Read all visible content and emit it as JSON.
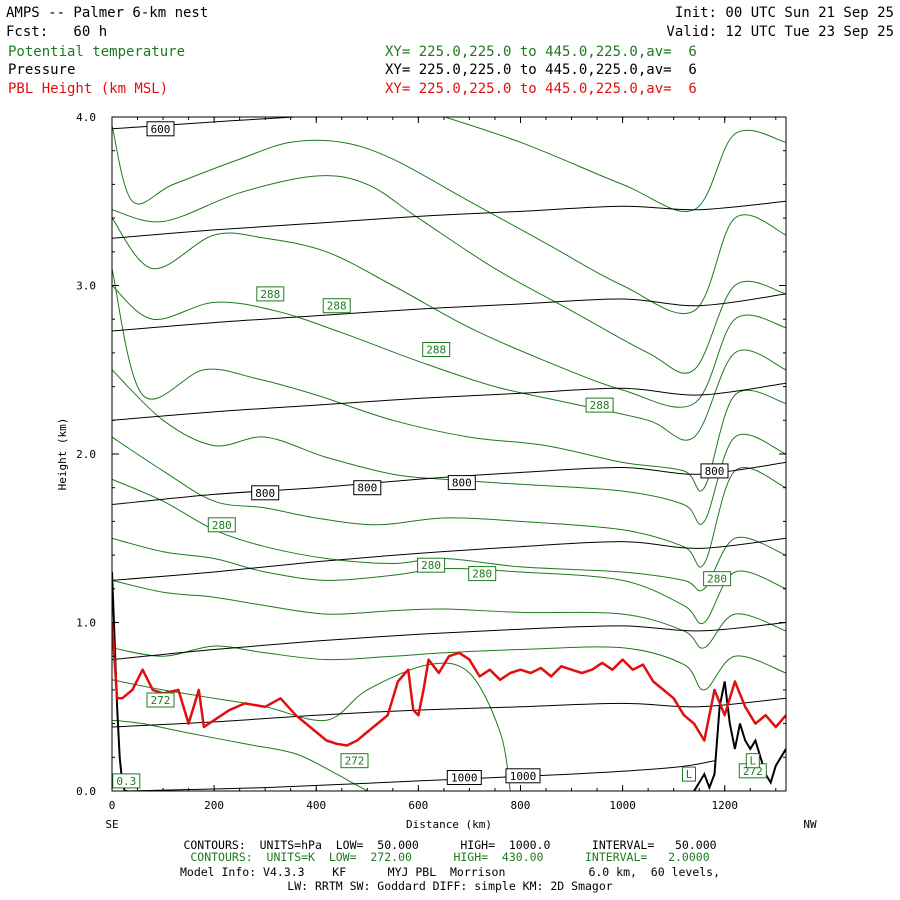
{
  "header": {
    "title": "AMPS -- Palmer 6-km nest",
    "init": "Init: 00 UTC Sun 21 Sep 25",
    "fcst": "Fcst:   60 h",
    "valid": "Valid: 12 UTC Tue 23 Sep 25",
    "fields": [
      {
        "name": "Potential temperature",
        "xy": "XY= 225.0,225.0 to 445.0,225.0,av=  6",
        "color": "#1e7a1e"
      },
      {
        "name": "Pressure",
        "xy": "XY= 225.0,225.0 to 445.0,225.0,av=  6",
        "color": "#000000"
      },
      {
        "name": "PBL Height (km MSL)",
        "xy": "XY= 225.0,225.0 to 445.0,225.0,av=  6",
        "color": "#e01010"
      }
    ]
  },
  "footer": {
    "pressure_contours": "CONTOURS:  UNITS=hPa  LOW=  50.000      HIGH=  1000.0      INTERVAL=   50.000",
    "theta_contours": "CONTOURS:  UNITS=K  LOW=  272.00      HIGH=  430.00      INTERVAL=   2.0000",
    "model_info": "Model Info: V4.3.3    KF      MYJ PBL  Morrison            6.0 km,  60 levels,",
    "physics": "LW: RRTM SW: Goddard DIFF: simple KM: 2D Smagor"
  },
  "chart_data": {
    "type": "line",
    "xlabel": "Distance (km)",
    "ylabel": "Height (km)",
    "xlim": [
      0,
      1320
    ],
    "ylim": [
      0,
      4.0
    ],
    "x_ticks": [
      0,
      200,
      400,
      600,
      800,
      1000,
      1200
    ],
    "x_tick_labels": [
      "0",
      "200",
      "400",
      "600",
      "800",
      "1000",
      "1200"
    ],
    "y_ticks": [
      0,
      1,
      2,
      3,
      4
    ],
    "y_tick_labels": [
      "0.0",
      "1.0",
      "2.0",
      "3.0",
      "4.0"
    ],
    "left_end_label": "SE",
    "right_end_label": "NW",
    "theta_color": "#1e7a1e",
    "pressure_color": "#000000",
    "pbl_color": "#e01010",
    "pressure_contours": [
      {
        "level": 1000,
        "x": [
          20,
          300,
          600,
          900,
          1100,
          1180
        ],
        "y": [
          0.0,
          0.02,
          0.06,
          0.1,
          0.14,
          0.18
        ]
      },
      {
        "level": 950,
        "x": [
          0,
          200,
          400,
          600,
          800,
          1000,
          1150,
          1320
        ],
        "y": [
          0.38,
          0.41,
          0.45,
          0.48,
          0.5,
          0.52,
          0.5,
          0.55
        ]
      },
      {
        "level": 900,
        "x": [
          0,
          200,
          400,
          600,
          800,
          1000,
          1150,
          1320
        ],
        "y": [
          0.78,
          0.84,
          0.89,
          0.93,
          0.96,
          0.98,
          0.95,
          1.0
        ]
      },
      {
        "level": 850,
        "x": [
          0,
          200,
          400,
          600,
          800,
          1000,
          1150,
          1320
        ],
        "y": [
          1.25,
          1.3,
          1.36,
          1.41,
          1.45,
          1.48,
          1.44,
          1.5
        ]
      },
      {
        "level": 800,
        "x": [
          0,
          200,
          400,
          600,
          800,
          1000,
          1150,
          1320
        ],
        "y": [
          1.7,
          1.76,
          1.8,
          1.85,
          1.89,
          1.92,
          1.88,
          1.95
        ]
      },
      {
        "level": 750,
        "x": [
          0,
          200,
          400,
          600,
          800,
          1000,
          1150,
          1320
        ],
        "y": [
          2.2,
          2.25,
          2.29,
          2.33,
          2.36,
          2.39,
          2.35,
          2.42
        ]
      },
      {
        "level": 700,
        "x": [
          0,
          200,
          400,
          600,
          800,
          1000,
          1150,
          1320
        ],
        "y": [
          2.73,
          2.78,
          2.82,
          2.86,
          2.89,
          2.92,
          2.88,
          2.95
        ]
      },
      {
        "level": 650,
        "x": [
          0,
          200,
          400,
          600,
          800,
          1000,
          1150,
          1320
        ],
        "y": [
          3.28,
          3.33,
          3.37,
          3.41,
          3.44,
          3.47,
          3.45,
          3.5
        ]
      },
      {
        "level": 600,
        "x": [
          0,
          100,
          300,
          500,
          800,
          1100,
          1320
        ],
        "y": [
          3.93,
          3.95,
          3.99,
          4.02,
          4.05,
          4.07,
          4.08
        ]
      }
    ],
    "pressure_labels": [
      {
        "text": "600",
        "x": 95,
        "y": 3.93
      },
      {
        "text": "800",
        "x": 300,
        "y": 1.77
      },
      {
        "text": "800",
        "x": 500,
        "y": 1.8
      },
      {
        "text": "800",
        "x": 685,
        "y": 1.83
      },
      {
        "text": "800",
        "x": 1180,
        "y": 1.9
      },
      {
        "text": "1000",
        "x": 690,
        "y": 0.08
      },
      {
        "text": "1000",
        "x": 805,
        "y": 0.09
      }
    ],
    "theta_contours": [
      {
        "x": [
          0,
          60,
          140,
          260,
          360,
          440,
          470,
          500
        ],
        "y": [
          0.42,
          0.4,
          0.35,
          0.28,
          0.22,
          0.1,
          0.05,
          0.0
        ]
      },
      {
        "x": [
          0,
          100,
          200,
          300,
          420,
          500,
          620,
          700,
          760,
          780
        ],
        "y": [
          0.66,
          0.6,
          0.55,
          0.5,
          0.42,
          0.6,
          0.75,
          0.7,
          0.35,
          0.0
        ]
      },
      {
        "x": [
          0,
          100,
          200,
          300,
          420,
          550,
          650,
          800,
          1000,
          1120,
          1160,
          1220,
          1320
        ],
        "y": [
          0.85,
          0.8,
          0.86,
          0.82,
          0.78,
          0.8,
          0.82,
          0.84,
          0.85,
          0.75,
          0.6,
          0.8,
          0.7
        ]
      },
      {
        "x": [
          0,
          100,
          200,
          300,
          420,
          550,
          650,
          800,
          1000,
          1120,
          1160,
          1220,
          1320
        ],
        "y": [
          1.25,
          1.18,
          1.15,
          1.1,
          1.05,
          1.07,
          1.08,
          1.06,
          1.05,
          0.95,
          0.85,
          1.05,
          0.95
        ]
      },
      {
        "x": [
          0,
          100,
          200,
          300,
          420,
          550,
          650,
          800,
          1000,
          1120,
          1160,
          1220,
          1320
        ],
        "y": [
          1.5,
          1.42,
          1.38,
          1.3,
          1.25,
          1.28,
          1.32,
          1.3,
          1.25,
          1.1,
          1.0,
          1.3,
          1.2
        ]
      },
      {
        "x": [
          0,
          100,
          200,
          300,
          420,
          550,
          650,
          800,
          1000,
          1120,
          1160,
          1220,
          1320
        ],
        "y": [
          1.85,
          1.72,
          1.55,
          1.45,
          1.38,
          1.35,
          1.38,
          1.33,
          1.3,
          1.25,
          1.2,
          1.5,
          1.4
        ]
      },
      {
        "x": [
          0,
          100,
          200,
          300,
          400,
          520,
          650,
          800,
          1000,
          1120,
          1160,
          1220,
          1320
        ],
        "y": [
          2.1,
          1.9,
          1.72,
          1.68,
          1.62,
          1.58,
          1.62,
          1.6,
          1.55,
          1.45,
          1.35,
          1.9,
          1.8
        ]
      },
      {
        "x": [
          0,
          100,
          200,
          300,
          420,
          550,
          650,
          800,
          1000,
          1120,
          1160,
          1220,
          1320
        ],
        "y": [
          2.5,
          2.2,
          2.05,
          2.1,
          1.98,
          1.88,
          1.85,
          1.82,
          1.78,
          1.7,
          1.6,
          2.1,
          2.0
        ]
      },
      {
        "x": [
          0,
          60,
          180,
          280,
          400,
          550,
          700,
          850,
          1000,
          1120,
          1160,
          1220,
          1320
        ],
        "y": [
          3.1,
          2.35,
          2.5,
          2.45,
          2.35,
          2.2,
          2.1,
          2.05,
          1.95,
          1.9,
          1.8,
          2.35,
          2.3
        ]
      },
      {
        "x": [
          0,
          80,
          200,
          320,
          450,
          600,
          750,
          900,
          1050,
          1140,
          1220,
          1320
        ],
        "y": [
          3.0,
          2.8,
          2.9,
          2.85,
          2.72,
          2.55,
          2.4,
          2.3,
          2.2,
          2.1,
          2.6,
          2.5
        ]
      },
      {
        "x": [
          0,
          80,
          200,
          300,
          420,
          550,
          700,
          850,
          1000,
          1140,
          1220,
          1320
        ],
        "y": [
          3.4,
          3.1,
          3.3,
          3.28,
          3.2,
          3.0,
          2.75,
          2.55,
          2.38,
          2.3,
          2.8,
          2.75
        ]
      },
      {
        "x": [
          0,
          100,
          250,
          400,
          500,
          600,
          750,
          900,
          1050,
          1140,
          1220,
          1320
        ],
        "y": [
          3.45,
          3.38,
          3.55,
          3.65,
          3.6,
          3.4,
          3.1,
          2.85,
          2.6,
          2.5,
          3.0,
          2.95
        ]
      },
      {
        "x": [
          0,
          40,
          120,
          250,
          350,
          450,
          550,
          700,
          850,
          1000,
          1140,
          1220,
          1320
        ],
        "y": [
          3.95,
          3.5,
          3.6,
          3.75,
          3.85,
          3.85,
          3.75,
          3.5,
          3.25,
          3.0,
          2.85,
          3.4,
          3.3
        ]
      },
      {
        "x": [
          600,
          800,
          1000,
          1140,
          1220,
          1320
        ],
        "y": [
          4.05,
          3.85,
          3.6,
          3.45,
          3.9,
          3.85
        ]
      }
    ],
    "theta_labels": [
      {
        "text": "288",
        "x": 310,
        "y": 2.95
      },
      {
        "text": "288",
        "x": 440,
        "y": 2.88
      },
      {
        "text": "288",
        "x": 635,
        "y": 2.62
      },
      {
        "text": "288",
        "x": 955,
        "y": 2.29
      },
      {
        "text": "280",
        "x": 215,
        "y": 1.58
      },
      {
        "text": "280",
        "x": 625,
        "y": 1.34
      },
      {
        "text": "280",
        "x": 725,
        "y": 1.29
      },
      {
        "text": "280",
        "x": 1185,
        "y": 1.26
      },
      {
        "text": "272",
        "x": 95,
        "y": 0.54
      },
      {
        "text": "272",
        "x": 475,
        "y": 0.18
      },
      {
        "text": "272",
        "x": 1255,
        "y": 0.12
      },
      {
        "text": "0.3",
        "x": 28,
        "y": 0.06
      },
      {
        "text": "L",
        "x": 1130,
        "y": 0.1
      },
      {
        "text": "L",
        "x": 1255,
        "y": 0.18
      }
    ],
    "pbl_height": {
      "x": [
        0,
        10,
        20,
        40,
        60,
        80,
        100,
        130,
        150,
        170,
        180,
        200,
        230,
        260,
        300,
        330,
        360,
        380,
        400,
        420,
        440,
        460,
        480,
        500,
        520,
        540,
        560,
        580,
        590,
        600,
        610,
        620,
        640,
        660,
        680,
        700,
        720,
        740,
        760,
        780,
        800,
        820,
        840,
        860,
        880,
        900,
        920,
        940,
        960,
        980,
        1000,
        1020,
        1040,
        1060,
        1080,
        1100,
        1120,
        1140,
        1160,
        1180,
        1200,
        1220,
        1240,
        1260,
        1280,
        1300,
        1320
      ],
      "y": [
        1.0,
        0.55,
        0.55,
        0.6,
        0.72,
        0.6,
        0.58,
        0.6,
        0.4,
        0.6,
        0.38,
        0.42,
        0.48,
        0.52,
        0.5,
        0.55,
        0.45,
        0.4,
        0.35,
        0.3,
        0.28,
        0.27,
        0.3,
        0.35,
        0.4,
        0.45,
        0.65,
        0.72,
        0.48,
        0.45,
        0.6,
        0.78,
        0.7,
        0.8,
        0.82,
        0.78,
        0.68,
        0.72,
        0.66,
        0.7,
        0.72,
        0.7,
        0.73,
        0.68,
        0.74,
        0.72,
        0.7,
        0.72,
        0.76,
        0.72,
        0.78,
        0.72,
        0.75,
        0.65,
        0.6,
        0.55,
        0.45,
        0.4,
        0.3,
        0.6,
        0.45,
        0.65,
        0.5,
        0.4,
        0.45,
        0.38,
        0.45
      ]
    },
    "terrain": {
      "x": [
        0,
        5,
        10,
        15,
        20,
        25,
        30,
        1140,
        1150,
        1160,
        1170,
        1180,
        1190,
        1200,
        1210,
        1220,
        1230,
        1240,
        1250,
        1260,
        1270,
        1280,
        1290,
        1300,
        1310,
        1320
      ],
      "y": [
        1.3,
        0.9,
        0.5,
        0.2,
        0.05,
        0.0,
        0.0,
        0.0,
        0.05,
        0.1,
        0.02,
        0.1,
        0.5,
        0.65,
        0.4,
        0.25,
        0.4,
        0.3,
        0.25,
        0.3,
        0.2,
        0.1,
        0.05,
        0.15,
        0.2,
        0.25
      ]
    }
  }
}
